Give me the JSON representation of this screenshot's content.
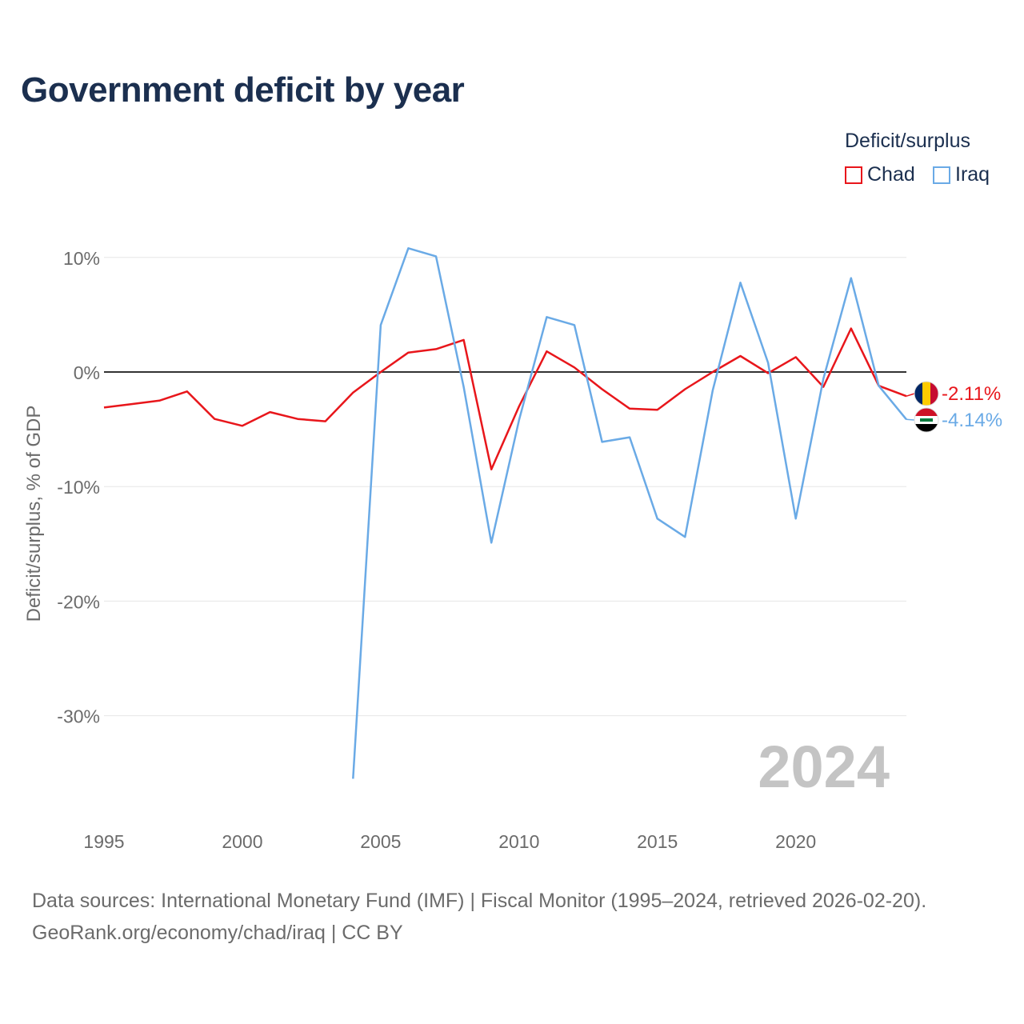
{
  "chart_data": {
    "type": "line",
    "title": "Government deficit by year",
    "ylabel": "Deficit/surplus, % of GDP",
    "xlabel": "",
    "legend_title": "Deficit/surplus",
    "x_ticks": [
      "1995",
      "2000",
      "2005",
      "2010",
      "2015",
      "2020"
    ],
    "y_ticks": [
      "10%",
      "0%",
      "-10%",
      "-20%",
      "-30%"
    ],
    "y_tick_values": [
      10,
      0,
      -10,
      -20,
      -30
    ],
    "xlim": [
      1995,
      2024
    ],
    "ylim": [
      -38,
      13
    ],
    "year_watermark": "2024",
    "series": [
      {
        "name": "Chad",
        "color": "#e8161b",
        "end_label": "-2.11%",
        "flag": "chad-flag",
        "points": [
          [
            1995,
            -3.1
          ],
          [
            1996,
            -2.8
          ],
          [
            1997,
            -2.5
          ],
          [
            1998,
            -1.7
          ],
          [
            1999,
            -4.1
          ],
          [
            2000,
            -4.7
          ],
          [
            2001,
            -3.5
          ],
          [
            2002,
            -4.1
          ],
          [
            2003,
            -4.3
          ],
          [
            2004,
            -1.8
          ],
          [
            2005,
            0.0
          ],
          [
            2006,
            1.7
          ],
          [
            2007,
            2.0
          ],
          [
            2008,
            2.8
          ],
          [
            2009,
            -8.5
          ],
          [
            2010,
            -3.0
          ],
          [
            2011,
            1.8
          ],
          [
            2012,
            0.4
          ],
          [
            2013,
            -1.5
          ],
          [
            2014,
            -3.2
          ],
          [
            2015,
            -3.3
          ],
          [
            2016,
            -1.5
          ],
          [
            2017,
            0.0
          ],
          [
            2018,
            1.4
          ],
          [
            2019,
            -0.1
          ],
          [
            2020,
            1.3
          ],
          [
            2021,
            -1.3
          ],
          [
            2022,
            3.8
          ],
          [
            2023,
            -1.2
          ],
          [
            2024,
            -2.11
          ]
        ]
      },
      {
        "name": "Iraq",
        "color": "#6aaae6",
        "end_label": "-4.14%",
        "flag": "iraq-flag",
        "points": [
          [
            2004,
            -35.5
          ],
          [
            2005,
            4.1
          ],
          [
            2006,
            10.8
          ],
          [
            2007,
            10.1
          ],
          [
            2008,
            -1.3
          ],
          [
            2009,
            -14.9
          ],
          [
            2010,
            -4.2
          ],
          [
            2011,
            4.8
          ],
          [
            2012,
            4.1
          ],
          [
            2013,
            -6.1
          ],
          [
            2014,
            -5.7
          ],
          [
            2015,
            -12.8
          ],
          [
            2016,
            -14.4
          ],
          [
            2017,
            -1.6
          ],
          [
            2018,
            7.8
          ],
          [
            2019,
            0.8
          ],
          [
            2020,
            -12.8
          ],
          [
            2021,
            -0.6
          ],
          [
            2022,
            8.2
          ],
          [
            2023,
            -1.2
          ],
          [
            2024,
            -4.14
          ]
        ]
      }
    ]
  },
  "source": {
    "line1": "Data sources: International Monetary Fund (IMF) | Fiscal Monitor (1995–2024, retrieved 2026-02-20).",
    "line2": "GeoRank.org/economy/chad/iraq | CC BY"
  }
}
